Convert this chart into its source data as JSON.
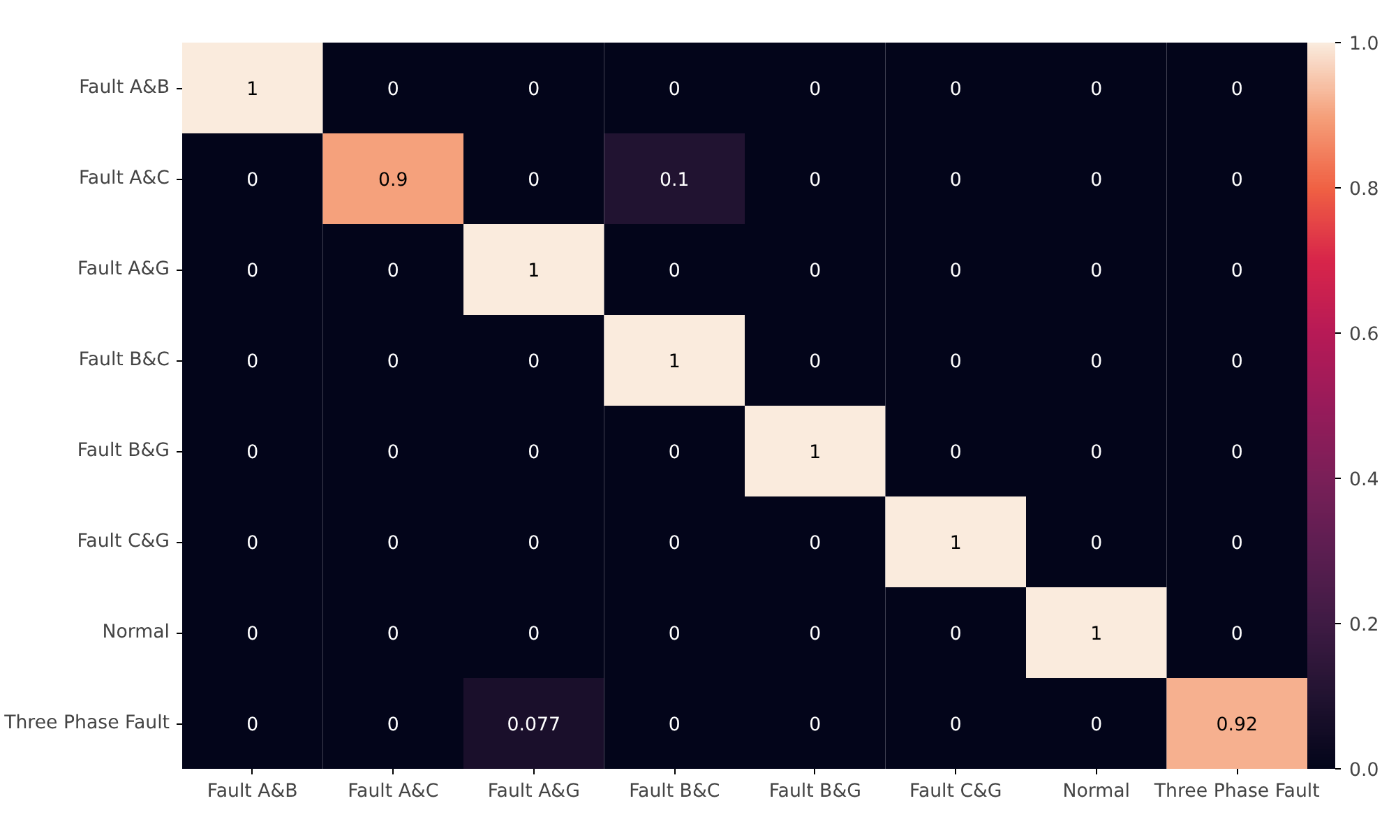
{
  "chart_data": {
    "type": "heatmap",
    "categories": [
      "Fault A&B",
      "Fault A&C",
      "Fault A&G",
      "Fault B&C",
      "Fault B&G",
      "Fault C&G",
      "Normal",
      "Three Phase Fault"
    ],
    "y_categories": [
      "Fault A&B",
      "Fault A&C",
      "Fault A&G",
      "Fault B&C",
      "Fault B&G",
      "Fault C&G",
      "Normal",
      "Three Phase Fault"
    ],
    "cells": [
      [
        1,
        0,
        0,
        0,
        0,
        0,
        0,
        0
      ],
      [
        0,
        0.9,
        0,
        0.1,
        0,
        0,
        0,
        0
      ],
      [
        0,
        0,
        1,
        0,
        0,
        0,
        0,
        0
      ],
      [
        0,
        0,
        0,
        1,
        0,
        0,
        0,
        0
      ],
      [
        0,
        0,
        0,
        0,
        1,
        0,
        0,
        0
      ],
      [
        0,
        0,
        0,
        0,
        0,
        1,
        0,
        0
      ],
      [
        0,
        0,
        0,
        0,
        0,
        0,
        1,
        0
      ],
      [
        0,
        0,
        0.077,
        0,
        0,
        0,
        0,
        0.92
      ]
    ],
    "data_labels": true,
    "clim": [
      0,
      1
    ],
    "cticks": [
      {
        "value": 0,
        "label": "0.0"
      },
      {
        "value": 0.2,
        "label": "0.2"
      },
      {
        "value": 0.4,
        "label": "0.4"
      },
      {
        "value": 0.6,
        "label": "0.6"
      },
      {
        "value": 0.8,
        "label": "0.8"
      },
      {
        "value": 1,
        "label": "1.0"
      }
    ]
  }
}
